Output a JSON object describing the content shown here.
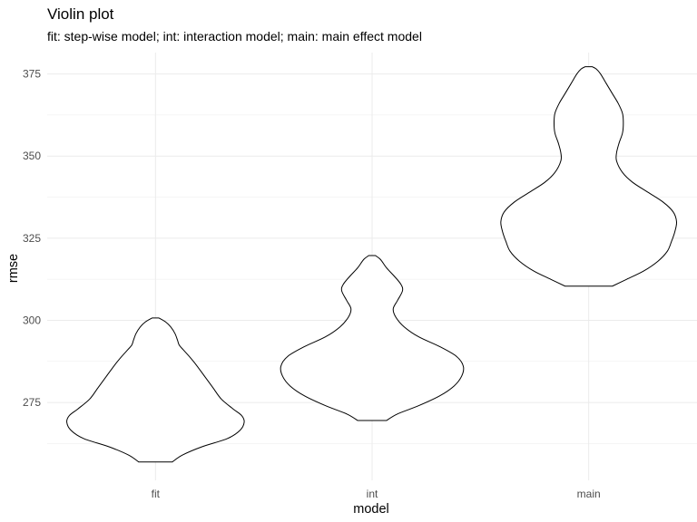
{
  "chart_data": {
    "type": "violin",
    "title": "Violin plot",
    "subtitle": "fit: step-wise model; int: interaction model; main: main effect model",
    "xlabel": "model",
    "ylabel": "rmse",
    "categories": [
      "fit",
      "int",
      "main"
    ],
    "ylim": [
      251.3,
      381.5
    ],
    "yticks": [
      275,
      300,
      325,
      350,
      375
    ],
    "grid": true,
    "colors": {
      "outline": "#000000",
      "fill": "#ffffff",
      "grid": "#ebebeb"
    },
    "violins": [
      {
        "category": "fit",
        "profile": [
          [
            256.9,
            0.2
          ],
          [
            259.0,
            0.32
          ],
          [
            261.5,
            0.55
          ],
          [
            264.0,
            0.85
          ],
          [
            266.5,
            1.0
          ],
          [
            269.0,
            1.05
          ],
          [
            271.0,
            1.02
          ],
          [
            273.0,
            0.92
          ],
          [
            276.0,
            0.78
          ],
          [
            279.5,
            0.68
          ],
          [
            283.0,
            0.58
          ],
          [
            286.5,
            0.48
          ],
          [
            289.0,
            0.4
          ],
          [
            291.0,
            0.33
          ],
          [
            292.5,
            0.28
          ],
          [
            294.0,
            0.26
          ],
          [
            296.0,
            0.23
          ],
          [
            298.0,
            0.18
          ],
          [
            299.5,
            0.12
          ],
          [
            300.7,
            0.04
          ]
        ]
      },
      {
        "category": "int",
        "profile": [
          [
            269.5,
            0.17
          ],
          [
            271.5,
            0.3
          ],
          [
            274.0,
            0.55
          ],
          [
            277.0,
            0.8
          ],
          [
            280.0,
            0.97
          ],
          [
            283.0,
            1.06
          ],
          [
            286.0,
            1.08
          ],
          [
            289.0,
            1.0
          ],
          [
            292.0,
            0.8
          ],
          [
            295.0,
            0.55
          ],
          [
            298.0,
            0.38
          ],
          [
            301.0,
            0.28
          ],
          [
            303.5,
            0.25
          ],
          [
            306.0,
            0.3
          ],
          [
            309.0,
            0.36
          ],
          [
            311.0,
            0.34
          ],
          [
            313.5,
            0.26
          ],
          [
            316.0,
            0.17
          ],
          [
            318.5,
            0.1
          ],
          [
            319.7,
            0.04
          ]
        ]
      },
      {
        "category": "main",
        "profile": [
          [
            310.4,
            0.28
          ],
          [
            312.5,
            0.45
          ],
          [
            315.0,
            0.65
          ],
          [
            318.0,
            0.82
          ],
          [
            321.0,
            0.93
          ],
          [
            324.0,
            0.98
          ],
          [
            327.0,
            1.02
          ],
          [
            330.0,
            1.04
          ],
          [
            333.0,
            1.0
          ],
          [
            336.0,
            0.88
          ],
          [
            339.0,
            0.7
          ],
          [
            342.0,
            0.52
          ],
          [
            345.0,
            0.4
          ],
          [
            348.5,
            0.33
          ],
          [
            351.0,
            0.33
          ],
          [
            354.0,
            0.36
          ],
          [
            357.0,
            0.4
          ],
          [
            360.0,
            0.41
          ],
          [
            363.0,
            0.4
          ],
          [
            366.0,
            0.35
          ],
          [
            369.0,
            0.28
          ],
          [
            372.0,
            0.21
          ],
          [
            375.0,
            0.14
          ],
          [
            376.5,
            0.09
          ],
          [
            377.2,
            0.04
          ]
        ]
      }
    ]
  }
}
